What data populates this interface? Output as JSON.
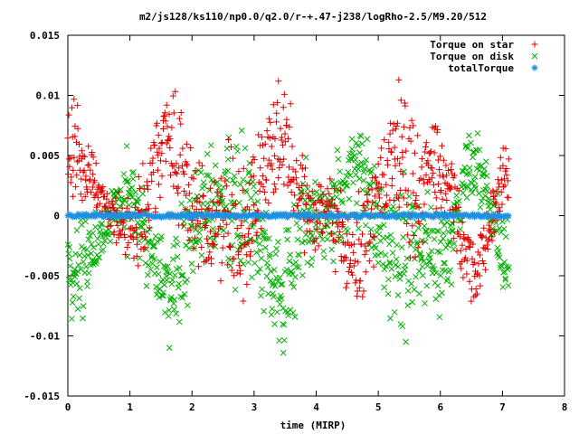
{
  "chart_data": {
    "type": "scatter",
    "title": "m2/js128/ks110/np0.0/q2.0/r-+.47-j238/logRho-2.5/M9.20/512",
    "xlabel": "time (MIRP)",
    "ylabel": "",
    "xlim": [
      0,
      8
    ],
    "ylim": [
      -0.015,
      0.015
    ],
    "xticks": [
      "0",
      "1",
      "2",
      "3",
      "4",
      "5",
      "6",
      "7",
      "8"
    ],
    "yticks": [
      "0.015",
      "0.01",
      "0.005",
      "0",
      "-0.005",
      "-0.01",
      "-0.015"
    ],
    "x_range_of_data": [
      0,
      7.1
    ],
    "grid": false,
    "legend_position": "top-right",
    "series": [
      {
        "name": "Torque on star",
        "marker": "plus",
        "color": "#e00000",
        "x": [
          0.0,
          0.1,
          0.2,
          0.3,
          0.4,
          0.5,
          0.6,
          0.7,
          0.8,
          0.9,
          1.0,
          1.1,
          1.2,
          1.3,
          1.4,
          1.5,
          1.6,
          1.7,
          1.8,
          1.9,
          2.0,
          2.1,
          2.2,
          2.3,
          2.4,
          2.5,
          2.6,
          2.7,
          2.8,
          2.9,
          3.0,
          3.1,
          3.2,
          3.3,
          3.4,
          3.5,
          3.6,
          3.7,
          3.8,
          3.9,
          4.0,
          4.1,
          4.2,
          4.3,
          4.4,
          4.5,
          4.6,
          4.7,
          4.8,
          4.9,
          5.0,
          5.1,
          5.2,
          5.3,
          5.4,
          5.5,
          5.6,
          5.7,
          5.8,
          5.9,
          6.0,
          6.1,
          6.2,
          6.3,
          6.4,
          6.5,
          6.6,
          6.7,
          6.8,
          6.9,
          7.0,
          7.1
        ],
        "y": [
          0.0053,
          0.0055,
          0.0046,
          0.0035,
          0.0028,
          0.0019,
          0.001,
          0.0001,
          -0.0006,
          -0.0011,
          -0.0013,
          -0.0009,
          0.0003,
          0.002,
          0.004,
          0.0056,
          0.0062,
          0.0057,
          0.0043,
          0.0025,
          0.0007,
          -0.0007,
          -0.0014,
          -0.0015,
          -0.001,
          -0.0004,
          -0.0004,
          -0.0009,
          -0.0013,
          -0.001,
          0.0001,
          0.002,
          0.0041,
          0.0059,
          0.0067,
          0.0062,
          0.0044,
          0.0023,
          0.0005,
          -0.0003,
          -0.0002,
          0.0003,
          0.0005,
          -0.0002,
          -0.0015,
          -0.0029,
          -0.0037,
          -0.0036,
          -0.0024,
          -0.0003,
          0.0019,
          0.0037,
          0.0046,
          0.0045,
          0.0035,
          0.0023,
          0.0016,
          0.0018,
          0.0027,
          0.0037,
          0.0041,
          0.0033,
          0.0014,
          -0.0011,
          -0.0032,
          -0.0043,
          -0.0042,
          -0.0029,
          -0.0009,
          0.0013,
          0.003,
          0.0039
        ],
        "spread": [
          0.0055,
          0.0058,
          0.0053,
          0.0044,
          0.0034,
          0.0026,
          0.0023,
          0.0027,
          0.0035,
          0.0044,
          0.0051,
          0.0055,
          0.0055,
          0.0053,
          0.0052,
          0.0055,
          0.0061,
          0.0068,
          0.0073,
          0.0074,
          0.007,
          0.0064,
          0.0058,
          0.0056,
          0.0059,
          0.0065,
          0.0073,
          0.0077,
          0.0078,
          0.0074,
          0.0067,
          0.0061,
          0.0057,
          0.0057,
          0.0061,
          0.0065,
          0.0066,
          0.0063,
          0.0056,
          0.0046,
          0.0038,
          0.0035,
          0.0039,
          0.0047,
          0.0058,
          0.0066,
          0.0071,
          0.0071,
          0.0067,
          0.0064,
          0.0063,
          0.0066,
          0.0072,
          0.0079,
          0.0083,
          0.0082,
          0.0077,
          0.0068,
          0.0058,
          0.005,
          0.0045,
          0.0044,
          0.0045,
          0.0046,
          0.0047,
          0.0046,
          0.0043,
          0.0039,
          0.0037,
          0.0038,
          0.0042,
          0.0046
        ]
      },
      {
        "name": "Torque on disk",
        "marker": "cross",
        "color": "#00b000",
        "x": [
          0.0,
          0.1,
          0.2,
          0.3,
          0.4,
          0.5,
          0.6,
          0.7,
          0.8,
          0.9,
          1.0,
          1.1,
          1.2,
          1.3,
          1.4,
          1.5,
          1.6,
          1.7,
          1.8,
          1.9,
          2.0,
          2.1,
          2.2,
          2.3,
          2.4,
          2.5,
          2.6,
          2.7,
          2.8,
          2.9,
          3.0,
          3.1,
          3.2,
          3.3,
          3.4,
          3.5,
          3.6,
          3.7,
          3.8,
          3.9,
          4.0,
          4.1,
          4.2,
          4.3,
          4.4,
          4.5,
          4.6,
          4.7,
          4.8,
          4.9,
          5.0,
          5.1,
          5.2,
          5.3,
          5.4,
          5.5,
          5.6,
          5.7,
          5.8,
          5.9,
          6.0,
          6.1,
          6.2,
          6.3,
          6.4,
          6.5,
          6.6,
          6.7,
          6.8,
          6.9,
          7.0,
          7.1
        ],
        "y": [
          -0.0053,
          -0.0055,
          -0.0046,
          -0.0035,
          -0.0028,
          -0.0019,
          -0.001,
          -0.0001,
          0.0006,
          0.0011,
          0.0013,
          0.0009,
          -0.0003,
          -0.002,
          -0.004,
          -0.0056,
          -0.0062,
          -0.0057,
          -0.0043,
          -0.0025,
          -0.0007,
          0.0007,
          0.0014,
          0.0015,
          0.001,
          0.0004,
          0.0004,
          0.0009,
          0.0013,
          0.001,
          -0.0001,
          -0.002,
          -0.0041,
          -0.0059,
          -0.0067,
          -0.0062,
          -0.0044,
          -0.0023,
          -0.0005,
          0.0003,
          0.0002,
          -0.0003,
          -0.0005,
          0.0002,
          0.0015,
          0.0029,
          0.0037,
          0.0036,
          0.0024,
          0.0003,
          -0.0019,
          -0.0037,
          -0.0046,
          -0.0045,
          -0.0035,
          -0.0023,
          -0.0016,
          -0.0018,
          -0.0027,
          -0.0037,
          -0.0041,
          -0.0033,
          -0.0014,
          0.0011,
          0.0032,
          0.0043,
          0.0042,
          0.0029,
          0.0009,
          -0.0013,
          -0.003,
          -0.0039
        ],
        "spread": [
          0.0055,
          0.0058,
          0.0053,
          0.0044,
          0.0034,
          0.0026,
          0.0023,
          0.0027,
          0.0035,
          0.0044,
          0.0051,
          0.0055,
          0.0055,
          0.0053,
          0.0052,
          0.0055,
          0.0061,
          0.0068,
          0.0073,
          0.0074,
          0.007,
          0.0064,
          0.0058,
          0.0056,
          0.0059,
          0.0065,
          0.0073,
          0.0077,
          0.0078,
          0.0074,
          0.0067,
          0.0061,
          0.0057,
          0.0057,
          0.0061,
          0.0065,
          0.0066,
          0.0063,
          0.0056,
          0.0046,
          0.0038,
          0.0035,
          0.0039,
          0.0047,
          0.0058,
          0.0066,
          0.0071,
          0.0071,
          0.0067,
          0.0064,
          0.0063,
          0.0066,
          0.0072,
          0.0079,
          0.0083,
          0.0082,
          0.0077,
          0.0068,
          0.0058,
          0.005,
          0.0045,
          0.0044,
          0.0045,
          0.0046,
          0.0047,
          0.0046,
          0.0043,
          0.0039,
          0.0037,
          0.0038,
          0.0042,
          0.0046
        ]
      },
      {
        "name": "totalTorque",
        "marker": "star",
        "color": "#1e90e0",
        "x_from": 0,
        "x_to": 7.1,
        "y": 0
      }
    ]
  }
}
